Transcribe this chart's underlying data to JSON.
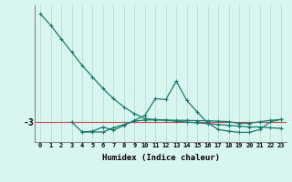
{
  "xlabel": "Humidex (Indice chaleur)",
  "x": [
    0,
    1,
    2,
    3,
    4,
    5,
    6,
    7,
    8,
    9,
    10,
    11,
    12,
    13,
    14,
    15,
    16,
    17,
    18,
    19,
    20,
    21,
    22,
    23
  ],
  "line1_y": [
    3.5,
    2.8,
    2.0,
    1.2,
    0.4,
    -0.3,
    -1.0,
    -1.6,
    -2.1,
    -2.5,
    -2.8,
    -2.85,
    -2.9,
    -2.95,
    -3.0,
    -3.05,
    -3.1,
    -3.15,
    -3.2,
    -3.25,
    -3.3,
    -3.3,
    -3.35,
    -3.38
  ],
  "line2_y": [
    null,
    null,
    null,
    -3.0,
    -3.6,
    -3.6,
    -3.6,
    -3.35,
    -3.15,
    -2.95,
    -2.88,
    -2.88,
    -2.88,
    -2.9,
    -2.9,
    -2.92,
    -2.92,
    -2.95,
    -2.98,
    -3.08,
    -3.08,
    -2.98,
    -2.9,
    -2.85
  ],
  "line3_y": [
    null,
    null,
    null,
    null,
    -3.6,
    -3.55,
    -3.3,
    -3.5,
    -3.2,
    -2.9,
    -2.6,
    -1.6,
    -1.65,
    -0.55,
    -1.7,
    -2.4,
    -3.05,
    -3.45,
    -3.55,
    -3.62,
    -3.62,
    -3.45,
    -2.98,
    -2.85
  ],
  "hline_y": -3.0,
  "line_color": "#1a7a6e",
  "hline_color": "#cc4444",
  "bg_color": "#d8f5f0",
  "grid_color": "#b8ddd8",
  "ylabel": "-3",
  "ytick_val": -3.0,
  "xlim": [
    -0.5,
    23.5
  ],
  "ylim": [
    -4.2,
    4.0
  ]
}
